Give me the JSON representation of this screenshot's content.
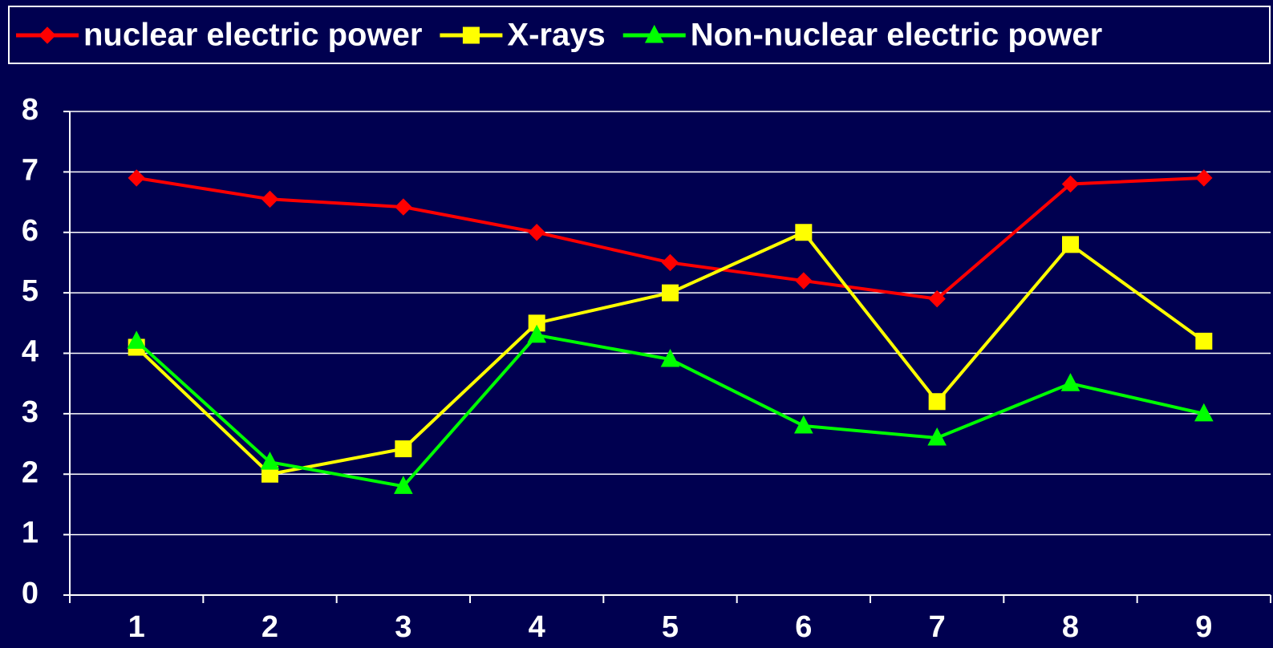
{
  "chart_data": {
    "type": "line",
    "categories": [
      "1",
      "2",
      "3",
      "4",
      "5",
      "6",
      "7",
      "8",
      "9"
    ],
    "series": [
      {
        "name": "nuclear electric power",
        "color": "#ff0000",
        "marker": "diamond",
        "values": [
          6.9,
          6.55,
          6.42,
          6.0,
          5.5,
          5.2,
          4.9,
          6.8,
          6.9
        ]
      },
      {
        "name": "X-rays",
        "color": "#ffff00",
        "marker": "square",
        "values": [
          4.1,
          2.0,
          2.42,
          4.5,
          5.0,
          6.0,
          3.2,
          5.8,
          4.2
        ]
      },
      {
        "name": "Non-nuclear electric power",
        "color": "#00ff00",
        "marker": "triangle",
        "values": [
          4.2,
          2.2,
          1.8,
          4.3,
          3.9,
          2.8,
          2.6,
          3.5,
          3.0
        ]
      }
    ],
    "ylim": [
      0,
      8
    ],
    "yticks": [
      0,
      1,
      2,
      3,
      4,
      5,
      6,
      7,
      8
    ],
    "grid": true,
    "legend": "top"
  }
}
